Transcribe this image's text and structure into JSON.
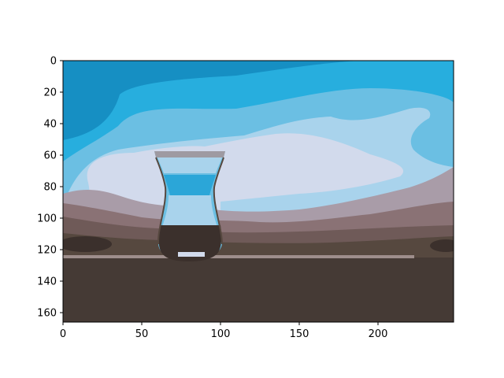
{
  "chart_data": {
    "type": "image",
    "title": "",
    "xlabel": "",
    "ylabel": "",
    "image_width": 248,
    "image_height": 166,
    "xlim": [
      0,
      248
    ],
    "ylim": [
      166,
      0
    ],
    "x_ticks": [
      0,
      50,
      100,
      150,
      200
    ],
    "x_tick_labels": [
      "0",
      "50",
      "100",
      "150",
      "200"
    ],
    "y_ticks": [
      0,
      20,
      40,
      60,
      80,
      100,
      120,
      140,
      160
    ],
    "y_tick_labels": [
      "0",
      "20",
      "40",
      "60",
      "80",
      "100",
      "120",
      "140",
      "160"
    ],
    "grid": false,
    "image_content": "Posterized photo of a tulip-shaped clear glass of water on a table against a blue sky with clouds",
    "palette": {
      "sky_dark": "#168fc3",
      "sky_mid": "#27aede",
      "sky_light": "#6bbfe3",
      "cloud_pale": "#a9d3ec",
      "cloud_white": "#d2daec",
      "horizon_mauve": "#a99ca8",
      "hill_rose": "#8a7275",
      "hill_brown": "#6f5a58",
      "dark_band": "#56483f",
      "table": "#453a35",
      "glass_water": "#2ba6d8",
      "glass_rim": "#9e9aa2"
    }
  }
}
